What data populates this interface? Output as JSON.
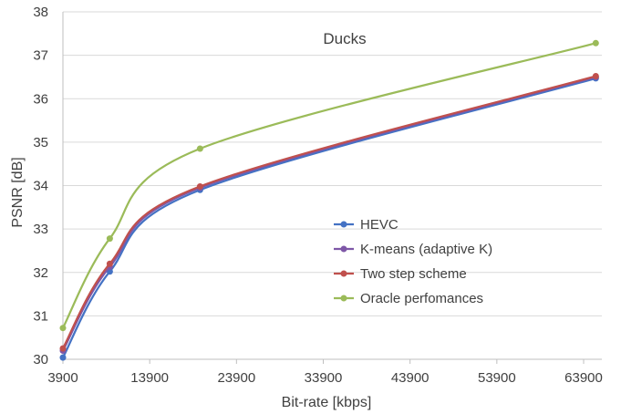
{
  "chart_data": {
    "type": "line",
    "title": "Ducks",
    "xlabel": "Bit-rate [kbps]",
    "ylabel": "PSNR [dB]",
    "xlim": [
      3900,
      66000
    ],
    "ylim": [
      30,
      38
    ],
    "xticks": [
      3900,
      13900,
      23900,
      33900,
      43900,
      53900,
      63900
    ],
    "yticks": [
      30,
      31,
      32,
      33,
      34,
      35,
      36,
      37,
      38
    ],
    "grid": "horizontal",
    "legend_position": "bottom-right inside",
    "series": [
      {
        "name": "HEVC",
        "color": "#4472c4",
        "x": [
          3900,
          9300,
          19700,
          65300
        ],
        "y": [
          30.04,
          32.02,
          33.9,
          36.47
        ]
      },
      {
        "name": "K-means (adaptive K)",
        "color": "#7e57a7",
        "x": [
          3900,
          9300,
          19700,
          65300
        ],
        "y": [
          30.2,
          32.13,
          33.95,
          36.5
        ]
      },
      {
        "name": "Two step scheme",
        "color": "#c0504d",
        "x": [
          3900,
          9300,
          19700,
          65300
        ],
        "y": [
          30.25,
          32.2,
          33.98,
          36.52
        ]
      },
      {
        "name": "Oracle perfomances",
        "color": "#9bbb59",
        "x": [
          3900,
          9300,
          19700,
          65300
        ],
        "y": [
          30.72,
          32.78,
          34.85,
          37.28
        ]
      }
    ]
  }
}
